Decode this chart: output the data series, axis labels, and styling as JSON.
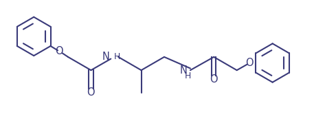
{
  "background_color": "#ffffff",
  "line_color": "#3a3a7a",
  "lw": 1.5,
  "fig_width": 4.57,
  "fig_height": 1.92,
  "dpi": 100,
  "xlim": [
    0,
    10
  ],
  "ylim": [
    0,
    4.2
  ],
  "font_size": 10.5
}
